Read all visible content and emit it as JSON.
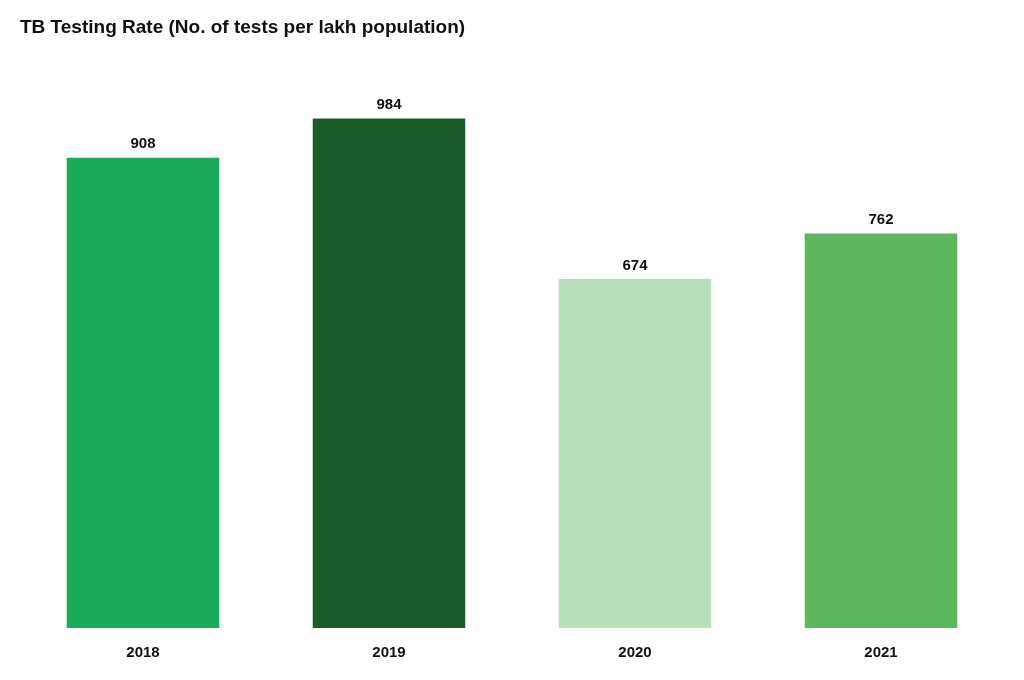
{
  "chart_data": {
    "type": "bar",
    "title": "TB Testing Rate (No. of tests per lakh population)",
    "categories": [
      "2018",
      "2019",
      "2020",
      "2021"
    ],
    "values": [
      908,
      984,
      674,
      762
    ],
    "colors": [
      "#1aaa5a",
      "#1a5c2a",
      "#b8e0b8",
      "#5cb85c"
    ],
    "ylim": [
      0,
      1080
    ],
    "grid": false,
    "data_labels": true,
    "tick_labels": "x"
  }
}
